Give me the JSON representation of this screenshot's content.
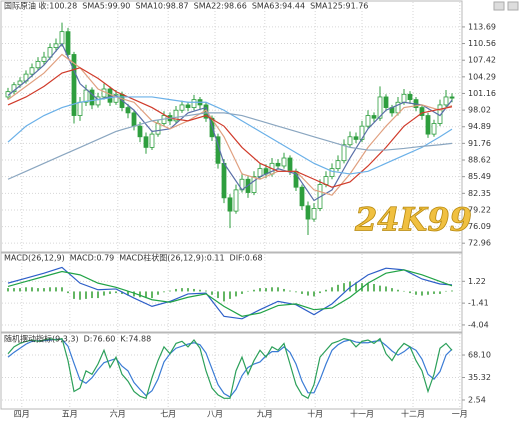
{
  "chart_data": [
    {
      "type": "candlestick",
      "title": "国际原油 收:100.28",
      "watermark": "24K99",
      "up_color": "#2e9e3e",
      "down_color": "#2e9e3e",
      "xlim": [
        -0.5,
        75.5
      ],
      "xticks": [
        {
          "value": 2.3,
          "label": "四月"
        },
        {
          "value": 10.3,
          "label": "五月"
        },
        {
          "value": 18.3,
          "label": "六月"
        },
        {
          "value": 26.7,
          "label": "七月"
        },
        {
          "value": 34.5,
          "label": "八月"
        },
        {
          "value": 42.8,
          "label": "九月"
        },
        {
          "value": 51.2,
          "label": "十月"
        },
        {
          "value": 59,
          "label": "十一月"
        },
        {
          "value": 67.5,
          "label": "十二月"
        },
        {
          "value": 75.3,
          "label": "一月"
        }
      ],
      "ylim": [
        71.3,
        116.5
      ],
      "yticks": [
        72.96,
        76.09,
        79.22,
        82.35,
        85.49,
        88.62,
        91.76,
        94.89,
        98.02,
        101.16,
        104.29,
        107.42,
        110.56,
        113.69
      ],
      "open": [
        100.5,
        101.5,
        102.8,
        103.5,
        104.8,
        106.0,
        107.2,
        108.0,
        109.8,
        110.5,
        112.8,
        108.5,
        97.0,
        99.5,
        101.8,
        99.0,
        100.5,
        102.0,
        99.5,
        101.0,
        98.5,
        97.5,
        95.0,
        93.0,
        91.0,
        93.5,
        95.5,
        97.0,
        96.0,
        98.0,
        99.0,
        98.5,
        100.0,
        99.0,
        96.5,
        93.0,
        88.0,
        81.5,
        79.0,
        83.0,
        85.0,
        82.5,
        85.5,
        87.0,
        86.0,
        88.0,
        87.5,
        89.0,
        86.5,
        83.5,
        80.0,
        77.5,
        79.5,
        84.0,
        85.5,
        87.0,
        88.5,
        91.5,
        93.0,
        92.5,
        95.0,
        97.0,
        96.5,
        100.5,
        98.5,
        97.5,
        99.5,
        101.0,
        100.0,
        98.5,
        97.0,
        93.5,
        95.5,
        99.0,
        100.5
      ],
      "high": [
        102.2,
        103.3,
        104.2,
        105.5,
        106.8,
        108.0,
        109.0,
        110.6,
        111.5,
        114.5,
        113.5,
        109.0,
        100.5,
        102.8,
        102.3,
        101.3,
        103.0,
        102.5,
        101.8,
        101.5,
        99.2,
        98.0,
        95.8,
        93.8,
        94.2,
        96.2,
        97.8,
        97.6,
        98.8,
        99.8,
        99.6,
        100.9,
        100.5,
        99.5,
        97.0,
        93.6,
        88.8,
        82.2,
        84.0,
        86.2,
        85.6,
        86.5,
        88.0,
        87.8,
        89.0,
        88.8,
        90.0,
        89.5,
        87.0,
        84.0,
        80.8,
        80.5,
        85.0,
        86.5,
        88.0,
        89.5,
        92.5,
        94.0,
        93.8,
        96.0,
        98.0,
        97.6,
        102.5,
        101.0,
        99.0,
        100.5,
        102.0,
        101.6,
        100.5,
        99.0,
        97.5,
        96.2,
        100.0,
        101.8,
        101.2
      ],
      "low": [
        100.0,
        101.0,
        102.2,
        103.0,
        104.2,
        105.5,
        106.5,
        107.5,
        109.0,
        110.0,
        107.8,
        95.5,
        96.0,
        98.8,
        98.2,
        98.5,
        100.0,
        98.8,
        99.0,
        97.8,
        96.5,
        94.2,
        92.0,
        89.8,
        90.5,
        93.0,
        95.0,
        95.2,
        95.5,
        97.5,
        97.8,
        98.0,
        98.2,
        95.8,
        92.2,
        87.0,
        80.5,
        75.8,
        78.5,
        82.5,
        81.5,
        82.0,
        85.0,
        85.2,
        85.5,
        86.8,
        87.0,
        85.8,
        82.8,
        79.2,
        74.5,
        77.0,
        79.0,
        83.5,
        85.0,
        86.5,
        88.0,
        91.0,
        91.8,
        92.0,
        94.5,
        95.8,
        96.0,
        97.8,
        96.8,
        97.0,
        99.0,
        99.2,
        97.8,
        96.2,
        92.8,
        93.0,
        95.0,
        98.5,
        99.5
      ],
      "close": [
        101.5,
        102.8,
        103.5,
        104.8,
        106.0,
        107.2,
        108.0,
        109.8,
        110.5,
        112.8,
        108.5,
        97.0,
        99.5,
        101.8,
        99.0,
        100.5,
        102.0,
        99.5,
        101.0,
        98.5,
        97.5,
        95.0,
        93.0,
        91.0,
        93.5,
        95.5,
        97.0,
        96.0,
        98.0,
        99.0,
        98.5,
        100.0,
        99.0,
        96.5,
        93.0,
        88.0,
        81.5,
        79.0,
        83.0,
        85.0,
        82.5,
        85.5,
        87.0,
        86.0,
        88.0,
        87.5,
        89.0,
        86.5,
        83.5,
        80.0,
        77.5,
        79.5,
        84.0,
        85.5,
        87.0,
        88.5,
        91.5,
        93.0,
        92.5,
        95.0,
        97.0,
        96.5,
        100.5,
        98.5,
        97.5,
        99.5,
        101.0,
        100.0,
        98.5,
        97.0,
        93.5,
        95.5,
        99.0,
        100.5,
        100.28
      ],
      "series": [
        {
          "name": "SMA5:99.90",
          "color": "#5a6fa8",
          "x": [
            0,
            3,
            6,
            9,
            12,
            15,
            18,
            21,
            24,
            27,
            30,
            33,
            36,
            39,
            42,
            45,
            48,
            51,
            54,
            57,
            60,
            63,
            66,
            69,
            72,
            74
          ],
          "values": [
            100.8,
            103.5,
            106.5,
            110.5,
            103,
            100,
            100.8,
            98,
            94,
            94.5,
            97.5,
            98.5,
            88,
            83,
            85.5,
            87,
            86,
            81,
            83,
            89,
            94.5,
            98,
            99.5,
            99,
            97,
            99.9
          ]
        },
        {
          "name": "SMA10:98.87",
          "color": "#e0a080",
          "x": [
            0,
            3,
            6,
            9,
            12,
            15,
            18,
            21,
            24,
            27,
            30,
            33,
            36,
            39,
            42,
            45,
            48,
            51,
            54,
            57,
            60,
            63,
            66,
            69,
            72,
            74
          ],
          "values": [
            100,
            102.5,
            105,
            108.5,
            106,
            102,
            100.5,
            99.5,
            96,
            94.5,
            96,
            98,
            93,
            86,
            85,
            86.5,
            86.5,
            83,
            82,
            86,
            91,
            95,
            98.5,
            99,
            98,
            98.87
          ]
        },
        {
          "name": "SMA22:98.66",
          "color": "#d03a2a",
          "x": [
            0,
            3,
            6,
            9,
            12,
            15,
            18,
            21,
            24,
            27,
            30,
            33,
            36,
            39,
            42,
            45,
            48,
            51,
            54,
            57,
            60,
            63,
            66,
            69,
            72,
            74
          ],
          "values": [
            99,
            100.5,
            102.5,
            105,
            106,
            104,
            101.5,
            100,
            98.5,
            96.5,
            96,
            97,
            95,
            91,
            88,
            86.5,
            86.5,
            85,
            83.5,
            84.5,
            87.5,
            91,
            95,
            97.5,
            98.2,
            98.66
          ]
        },
        {
          "name": "SMA63:94.44",
          "color": "#6ab0e8",
          "x": [
            0,
            3,
            6,
            9,
            12,
            15,
            18,
            21,
            24,
            27,
            30,
            33,
            36,
            39,
            42,
            45,
            48,
            51,
            54,
            57,
            60,
            63,
            66,
            69,
            72,
            74
          ],
          "values": [
            92,
            95,
            97,
            98.5,
            99.5,
            100,
            100.5,
            100.5,
            100.5,
            100,
            99.5,
            99.5,
            98,
            96,
            94,
            92,
            90,
            88,
            86.5,
            86,
            86.5,
            88,
            89.5,
            91,
            93,
            94.44
          ]
        },
        {
          "name": "SMA125:91.76",
          "color": "#8aa6c0",
          "x": [
            0,
            3,
            6,
            9,
            12,
            15,
            18,
            21,
            24,
            27,
            30,
            33,
            36,
            39,
            42,
            45,
            48,
            51,
            54,
            57,
            60,
            63,
            66,
            69,
            72,
            74
          ],
          "values": [
            85,
            86.5,
            88,
            89.5,
            91,
            92.5,
            94,
            95,
            96,
            96.5,
            97,
            97.5,
            97.5,
            97,
            96,
            95,
            94,
            93,
            92,
            91,
            90.5,
            90.5,
            90.8,
            91.2,
            91.5,
            91.76
          ]
        }
      ]
    },
    {
      "type": "macd",
      "title": "MACD(26,12,9)",
      "xlim": [
        -0.5,
        75.5
      ],
      "ylim": [
        -4.65,
        3.79
      ],
      "yticks": [
        1.22,
        -1.41,
        -4.04
      ],
      "series": [
        {
          "name": "MACD:0.79",
          "color": "#2d5ec8",
          "x": [
            0,
            3,
            6,
            9,
            12,
            15,
            18,
            21,
            24,
            27,
            30,
            33,
            36,
            39,
            42,
            45,
            48,
            51,
            54,
            57,
            60,
            63,
            66,
            69,
            72,
            74
          ],
          "values": [
            1.0,
            1.6,
            2.2,
            2.9,
            1.0,
            0.2,
            0.3,
            -0.8,
            -1.8,
            -1.2,
            -0.3,
            -0.2,
            -3.0,
            -3.3,
            -2.2,
            -1.2,
            -1.6,
            -2.8,
            -1.5,
            0.5,
            2.0,
            2.8,
            2.6,
            1.5,
            0.9,
            0.79
          ]
        },
        {
          "name": "MACD柱状图(26,12,9):0.11",
          "color": "#2f9e2f",
          "style": "bar",
          "values": [
            0.4,
            0.4,
            0.4,
            0.5,
            0.5,
            0.4,
            0.4,
            0.5,
            0.5,
            0.5,
            -0.2,
            -0.9,
            -1.0,
            -0.9,
            -0.8,
            -0.8,
            -0.5,
            -0.3,
            -0.2,
            -0.3,
            -0.5,
            -0.6,
            -0.7,
            -0.8,
            -0.8,
            -0.4,
            -0.1,
            0.1,
            0.3,
            0.4,
            0.4,
            0.3,
            0.2,
            0.1,
            -0.4,
            -0.8,
            -1.2,
            -0.9,
            -0.6,
            -0.3,
            0.0,
            0.2,
            0.4,
            0.4,
            0.5,
            0.5,
            0.3,
            0.1,
            -0.1,
            -0.3,
            -0.5,
            -0.6,
            -0.2,
            0.2,
            0.5,
            0.8,
            1.0,
            1.2,
            1.1,
            1.0,
            1.0,
            0.9,
            0.7,
            0.6,
            0.4,
            0.2,
            0.0,
            -0.2,
            -0.4,
            -0.5,
            -0.4,
            -0.3,
            -0.3,
            0.0,
            0.11
          ]
        },
        {
          "name": "DIF:0.68",
          "color": "#21a346",
          "x": [
            0,
            3,
            6,
            9,
            12,
            15,
            18,
            21,
            24,
            27,
            30,
            33,
            36,
            39,
            42,
            45,
            48,
            51,
            54,
            57,
            60,
            63,
            66,
            69,
            72,
            74
          ],
          "values": [
            0.6,
            1.2,
            1.8,
            2.4,
            2.0,
            1.0,
            0.5,
            -0.2,
            -1.0,
            -1.3,
            -0.7,
            -0.3,
            -1.8,
            -3.0,
            -2.6,
            -1.7,
            -1.5,
            -2.2,
            -2.0,
            -0.7,
            1.0,
            2.2,
            2.6,
            2.0,
            1.2,
            0.68
          ]
        }
      ]
    },
    {
      "type": "line",
      "title": "随机摆动指标(9,3,3)",
      "xlim": [
        -0.5,
        75.5
      ],
      "ylim": [
        -9.1,
        92.9
      ],
      "yticks": [
        {
          "value": 68.1,
          "label": "68.10"
        },
        35.32,
        2.54
      ],
      "series": [
        {
          "name": "D:76.60",
          "color": "#3a7bd5",
          "values": [
            65,
            72,
            78,
            84,
            88,
            89,
            89,
            90,
            91,
            91,
            81,
            56,
            32,
            27,
            35,
            47,
            57,
            60,
            63,
            52,
            45,
            28,
            18,
            9,
            16,
            33,
            58,
            70,
            78,
            81,
            84,
            86,
            83,
            71,
            48,
            25,
            12,
            7,
            18,
            38,
            50,
            55,
            58,
            67,
            73,
            73,
            80,
            72,
            55,
            30,
            13,
            13,
            32,
            55,
            75,
            83,
            88,
            90,
            87,
            86,
            86,
            88,
            89,
            82,
            74,
            68,
            73,
            80,
            75,
            62,
            40,
            33,
            44,
            68,
            76.6
          ]
        },
        {
          "name": "K:74.88",
          "color": "#2ca05a",
          "values": [
            70,
            80,
            85,
            88,
            90,
            88,
            90,
            92,
            90,
            92,
            60,
            15,
            20,
            45,
            40,
            55,
            75,
            50,
            65,
            40,
            30,
            15,
            8,
            5,
            35,
            60,
            80,
            70,
            85,
            88,
            80,
            90,
            78,
            45,
            20,
            10,
            5,
            5,
            45,
            65,
            40,
            60,
            75,
            65,
            80,
            75,
            85,
            55,
            25,
            10,
            5,
            25,
            65,
            75,
            85,
            88,
            92,
            90,
            80,
            88,
            90,
            85,
            92,
            70,
            60,
            75,
            85,
            80,
            60,
            45,
            15,
            40,
            78,
            85,
            74.88
          ]
        }
      ]
    }
  ]
}
